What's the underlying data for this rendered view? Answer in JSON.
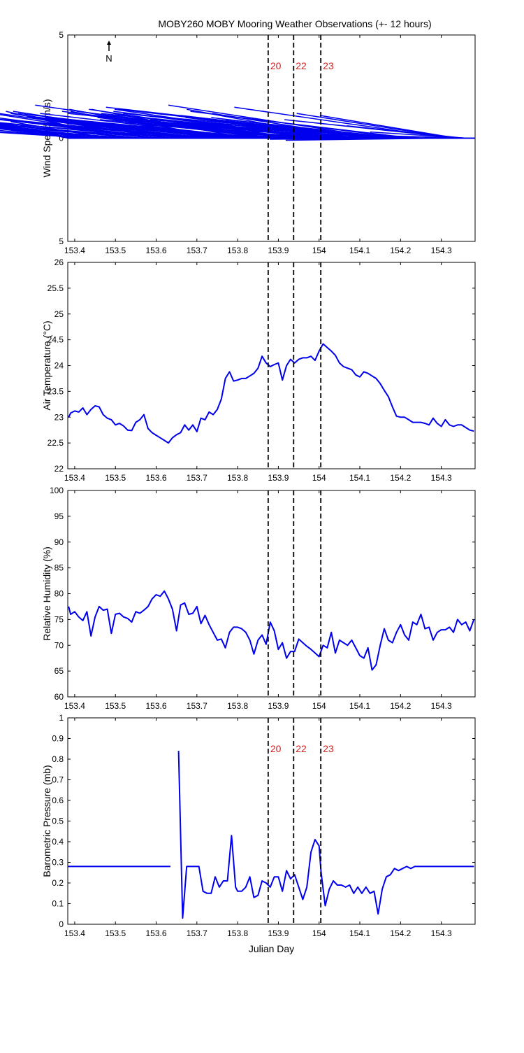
{
  "title": "MOBY260 MOBY Mooring Weather Observations (+- 12 hours)",
  "north_label": "N",
  "colors": {
    "series": "#0000ee",
    "marker_text": "#cc2222",
    "axis": "#000000"
  },
  "markers": {
    "x": [
      153.875,
      153.9375,
      154.0042
    ],
    "labels": [
      "20",
      "22",
      "23"
    ]
  },
  "chart_data": [
    {
      "type": "quiver",
      "ylabel": "Wind Speed (m/s)",
      "xlabel": "Julian Day",
      "xlim": [
        153.383,
        154.383
      ],
      "ylim": [
        -5,
        5
      ],
      "yticks": [
        "5",
        "0",
        "5"
      ],
      "xticks": [
        "153.4",
        "153.5",
        "153.6",
        "153.7",
        "153.8",
        "153.9",
        "154",
        "154.1",
        "154.2",
        "154.3"
      ],
      "show_marker_labels": true,
      "vectors": {
        "x": [
          153.384,
          153.393,
          153.402,
          153.411,
          153.42,
          153.429,
          153.438,
          153.447,
          153.456,
          153.465,
          153.474,
          153.483,
          153.492,
          153.501,
          153.51,
          153.519,
          153.528,
          153.537,
          153.546,
          153.555,
          153.564,
          153.573,
          153.582,
          153.591,
          153.6,
          153.609,
          153.618,
          153.627,
          153.636,
          153.645,
          153.654,
          153.663,
          153.672,
          153.681,
          153.69,
          153.699,
          153.708,
          153.717,
          153.726,
          153.735,
          153.744,
          153.753,
          153.762,
          153.771,
          153.78,
          153.789,
          153.798,
          153.807,
          153.816,
          153.825,
          153.834,
          153.843,
          153.852,
          153.861,
          153.87,
          153.879,
          153.888,
          153.897,
          153.906,
          153.915,
          153.924,
          153.933,
          153.942,
          153.951,
          153.96,
          153.969,
          153.978,
          153.987,
          153.996,
          154.005,
          154.014,
          154.023,
          154.032,
          154.041,
          154.05,
          154.059,
          154.068,
          154.077,
          154.086,
          154.095,
          154.104,
          154.113,
          154.122,
          154.131,
          154.14,
          154.149,
          154.158,
          154.167,
          154.176,
          154.185,
          154.194,
          154.203,
          154.212,
          154.221,
          154.23,
          154.239,
          154.248,
          154.257,
          154.266,
          154.275,
          154.284,
          154.293,
          154.302,
          154.311,
          154.32,
          154.329,
          154.338,
          154.347,
          154.356,
          154.365,
          154.374
        ],
        "u": [
          0.6,
          0.7,
          0.5,
          0.9,
          0.8,
          0.6,
          1.0,
          0.7,
          0.6,
          0.8,
          0.9,
          0.5,
          0.7,
          0.8,
          1.0,
          0.6,
          0.9,
          0.7,
          0.8,
          0.6,
          1.0,
          0.9,
          1.4,
          0.8,
          0.7,
          0.9,
          1.0,
          0.8,
          1.1,
          0.9,
          1.0,
          0.8,
          0.7,
          0.9,
          1.1,
          0.8,
          0.9,
          1.0,
          0.7,
          0.8,
          1.2,
          0.9,
          1.0,
          0.8,
          0.9,
          1.1,
          0.8,
          1.0,
          0.9,
          0.8,
          1.0,
          1.1,
          0.9,
          0.8,
          1.0,
          1.2,
          0.9,
          1.1,
          0.8,
          1.0,
          0.9,
          1.1,
          1.0,
          0.8,
          1.2,
          0.9,
          1.0,
          1.1,
          0.8,
          0.9,
          1.0,
          1.1,
          0.9,
          1.2,
          1.0,
          0.8,
          1.1,
          0.9,
          1.0,
          1.2,
          0.9,
          1.1,
          0.8,
          1.3,
          1.0,
          1.4,
          1.1,
          0.9,
          1.2,
          1.0,
          1.3,
          0.9,
          1.1,
          1.0,
          0.8,
          1.0,
          0.9,
          1.1,
          0.8,
          1.0,
          0.9,
          0.7,
          0.8,
          0.9,
          1.1,
          0.8,
          0.7,
          0.9,
          0.6,
          0.5,
          0.4
        ],
        "v": [
          1.1,
          1.2,
          0.8,
          1.0,
          0.7,
          0.9,
          0.6,
          0.8,
          0.6,
          0.7,
          0.5,
          0.8,
          0.6,
          0.7,
          0.9,
          1.3,
          0.7,
          0.5,
          0.8,
          0.6,
          0.9,
          0.7,
          2.1,
          1.0,
          0.8,
          0.7,
          0.9,
          1.2,
          1.5,
          0.9,
          0.8,
          1.1,
          0.9,
          1.3,
          0.8,
          0.7,
          1.1,
          0.9,
          1.3,
          0.8,
          1.0,
          0.7,
          1.0,
          1.4,
          0.9,
          1.2,
          0.8,
          1.0,
          0.7,
          1.4,
          0.9,
          1.2,
          0.8,
          1.1,
          0.9,
          1.6,
          1.0,
          1.3,
          0.8,
          1.4,
          1.1,
          1.3,
          0.9,
          1.0,
          1.2,
          0.8,
          1.4,
          1.0,
          0.9,
          1.1,
          0.7,
          1.3,
          0.8,
          1.2,
          1.0,
          1.4,
          0.9,
          1.1,
          0.8,
          1.2,
          1.0,
          0.9,
          1.2,
          1.4,
          1.1,
          1.5,
          1.6,
          1.0,
          1.2,
          0.8,
          1.1,
          0.9,
          1.3,
          0.7,
          0.9,
          0.6,
          0.5,
          0.4,
          0.3,
          0.2,
          0.1,
          -0.05,
          -0.1,
          -0.05,
          1.5,
          1.2,
          1.1,
          0.9,
          0.6,
          0.3,
          0.1
        ]
      }
    },
    {
      "type": "line",
      "ylabel": "Air Temperature (°C)",
      "xlabel": "Julian Day",
      "xlim": [
        153.383,
        154.383
      ],
      "ylim": [
        22,
        26
      ],
      "yticks": [
        "22",
        "22.5",
        "23",
        "23.5",
        "24",
        "24.5",
        "25",
        "25.5",
        "26"
      ],
      "xticks": [
        "153.4",
        "153.5",
        "153.6",
        "153.7",
        "153.8",
        "153.9",
        "154",
        "154.1",
        "154.2",
        "154.3"
      ],
      "show_marker_labels": false,
      "series": [
        {
          "x": [
            153.385,
            153.39,
            153.4,
            153.41,
            153.42,
            153.43,
            153.44,
            153.45,
            153.46,
            153.47,
            153.48,
            153.49,
            153.5,
            153.51,
            153.52,
            153.53,
            153.54,
            153.55,
            153.56,
            153.57,
            153.58,
            153.59,
            153.6,
            153.61,
            153.62,
            153.63,
            153.64,
            153.65,
            153.66,
            153.67,
            153.68,
            153.69,
            153.7,
            153.71,
            153.72,
            153.73,
            153.74,
            153.75,
            153.76,
            153.77,
            153.78,
            153.79,
            153.8,
            153.81,
            153.82,
            153.83,
            153.84,
            153.85,
            153.86,
            153.87,
            153.88,
            153.89,
            153.9,
            153.91,
            153.92,
            153.93,
            153.94,
            153.95,
            153.96,
            153.97,
            153.98,
            153.99,
            154.0,
            154.01,
            154.02,
            154.03,
            154.04,
            154.05,
            154.06,
            154.07,
            154.08,
            154.09,
            154.1,
            154.11,
            154.12,
            154.13,
            154.14,
            154.15,
            154.16,
            154.17,
            154.18,
            154.19,
            154.2,
            154.21,
            154.22,
            154.23,
            154.24,
            154.25,
            154.26,
            154.27,
            154.28,
            154.29,
            154.3,
            154.31,
            154.32,
            154.33,
            154.34,
            154.35,
            154.36,
            154.37,
            154.38
          ],
          "y": [
            23.0,
            23.08,
            23.12,
            23.1,
            23.18,
            23.05,
            23.15,
            23.22,
            23.2,
            23.05,
            22.98,
            22.95,
            22.85,
            22.88,
            22.83,
            22.75,
            22.74,
            22.9,
            22.95,
            23.05,
            22.78,
            22.7,
            22.65,
            22.6,
            22.55,
            22.5,
            22.6,
            22.66,
            22.7,
            22.85,
            22.75,
            22.85,
            22.72,
            22.98,
            22.95,
            23.1,
            23.05,
            23.15,
            23.35,
            23.75,
            23.88,
            23.7,
            23.72,
            23.75,
            23.75,
            23.8,
            23.85,
            23.95,
            24.18,
            24.05,
            23.98,
            24.02,
            24.05,
            23.72,
            24.0,
            24.12,
            24.05,
            24.12,
            24.15,
            24.15,
            24.18,
            24.1,
            24.28,
            24.42,
            24.35,
            24.28,
            24.2,
            24.05,
            23.98,
            23.95,
            23.92,
            23.82,
            23.78,
            23.88,
            23.85,
            23.8,
            23.75,
            23.65,
            23.52,
            23.4,
            23.2,
            23.02,
            23.0,
            23.0,
            22.95,
            22.9,
            22.9,
            22.9,
            22.88,
            22.85,
            22.98,
            22.88,
            22.82,
            22.95,
            22.85,
            22.82,
            22.85,
            22.85,
            22.8,
            22.75,
            22.73
          ]
        }
      ]
    },
    {
      "type": "line",
      "ylabel": "Relative Humidity (%)",
      "xlabel": "Julian Day",
      "xlim": [
        153.383,
        154.383
      ],
      "ylim": [
        60,
        100
      ],
      "yticks": [
        "60",
        "65",
        "70",
        "75",
        "80",
        "85",
        "90",
        "95",
        "100"
      ],
      "xticks": [
        "153.4",
        "153.5",
        "153.6",
        "153.7",
        "153.8",
        "153.9",
        "154",
        "154.1",
        "154.2",
        "154.3"
      ],
      "show_marker_labels": false,
      "series": [
        {
          "x": [
            153.385,
            153.39,
            153.4,
            153.41,
            153.42,
            153.43,
            153.44,
            153.45,
            153.46,
            153.47,
            153.48,
            153.49,
            153.5,
            153.51,
            153.52,
            153.53,
            153.54,
            153.55,
            153.56,
            153.57,
            153.58,
            153.59,
            153.6,
            153.61,
            153.62,
            153.63,
            153.64,
            153.65,
            153.66,
            153.67,
            153.68,
            153.69,
            153.7,
            153.71,
            153.72,
            153.73,
            153.74,
            153.75,
            153.76,
            153.77,
            153.78,
            153.79,
            153.8,
            153.81,
            153.82,
            153.83,
            153.84,
            153.85,
            153.86,
            153.87,
            153.88,
            153.89,
            153.9,
            153.91,
            153.92,
            153.93,
            153.94,
            153.95,
            153.96,
            153.97,
            153.98,
            153.99,
            154.0,
            154.01,
            154.02,
            154.03,
            154.04,
            154.05,
            154.06,
            154.07,
            154.08,
            154.09,
            154.1,
            154.11,
            154.12,
            154.13,
            154.14,
            154.15,
            154.16,
            154.17,
            154.18,
            154.19,
            154.2,
            154.21,
            154.22,
            154.23,
            154.24,
            154.25,
            154.26,
            154.27,
            154.28,
            154.29,
            154.3,
            154.31,
            154.32,
            154.33,
            154.34,
            154.35,
            154.36,
            154.37,
            154.38
          ],
          "y": [
            77.5,
            76,
            76.5,
            75.5,
            74.8,
            76.5,
            71.8,
            75.5,
            77.5,
            76.8,
            77,
            72.3,
            76,
            76.2,
            75.5,
            75.2,
            74.5,
            76.5,
            76.2,
            76.8,
            77.5,
            79,
            79.8,
            79.5,
            80.5,
            79,
            77,
            72.8,
            77.8,
            78.2,
            76,
            76.2,
            77.5,
            74.2,
            75.8,
            74,
            72.5,
            71,
            71.2,
            69.5,
            72.5,
            73.5,
            73.5,
            73.2,
            72.5,
            71,
            68.3,
            71,
            72,
            70.2,
            74.5,
            72.8,
            69.2,
            70.5,
            67.5,
            68.8,
            68.8,
            71.2,
            70.5,
            69.8,
            69.2,
            68.5,
            67.8,
            70,
            69.5,
            72.5,
            68.5,
            71,
            70.5,
            70,
            71,
            69.5,
            68,
            67.5,
            69.5,
            65.2,
            66.2,
            70,
            73.2,
            71,
            70.5,
            72.5,
            74,
            72,
            71,
            74.5,
            74,
            76,
            73.2,
            73.5,
            71,
            72.5,
            73,
            73,
            73.5,
            72.5,
            75,
            74,
            74.5,
            72.8,
            75
          ]
        }
      ]
    },
    {
      "type": "line",
      "ylabel": "Barometric Pressure (mb)",
      "xlabel": "Julian Day",
      "xlim": [
        153.383,
        154.383
      ],
      "ylim": [
        0,
        1
      ],
      "yticks": [
        "0",
        "0.1",
        "0.2",
        "0.3",
        "0.4",
        "0.5",
        "0.6",
        "0.7",
        "0.8",
        "0.9",
        "1"
      ],
      "xticks": [
        "153.4",
        "153.5",
        "153.6",
        "153.7",
        "153.8",
        "153.9",
        "154",
        "154.1",
        "154.2",
        "154.3"
      ],
      "show_marker_labels": true,
      "series": [
        {
          "x": [
            153.383,
            153.635
          ],
          "y": [
            0.28,
            0.28
          ]
        },
        {
          "x": [
            153.655,
            153.665,
            153.675,
            153.685,
            153.695,
            153.705,
            153.715,
            153.725,
            153.735,
            153.745,
            153.755,
            153.765,
            153.775,
            153.785,
            153.795,
            153.8,
            153.81,
            153.82,
            153.83,
            153.84,
            153.85,
            153.86,
            153.87,
            153.88,
            153.89,
            153.9,
            153.91,
            153.92,
            153.93,
            153.94,
            153.95,
            153.96,
            153.97,
            153.98,
            153.99,
            154.0,
            154.005,
            154.015,
            154.025,
            154.035,
            154.045,
            154.055,
            154.065,
            154.075,
            154.085,
            154.095,
            154.105,
            154.115,
            154.125,
            154.135,
            154.145,
            154.155,
            154.165,
            154.175,
            154.185,
            154.195,
            154.205,
            154.215,
            154.225,
            154.235,
            154.245,
            154.255,
            154.265,
            154.38
          ],
          "y": [
            0.84,
            0.03,
            0.28,
            0.28,
            0.28,
            0.28,
            0.16,
            0.15,
            0.15,
            0.23,
            0.18,
            0.21,
            0.21,
            0.43,
            0.18,
            0.16,
            0.16,
            0.18,
            0.23,
            0.13,
            0.14,
            0.21,
            0.2,
            0.18,
            0.23,
            0.23,
            0.16,
            0.26,
            0.22,
            0.24,
            0.18,
            0.12,
            0.18,
            0.35,
            0.41,
            0.38,
            0.25,
            0.09,
            0.17,
            0.21,
            0.19,
            0.19,
            0.18,
            0.19,
            0.15,
            0.18,
            0.15,
            0.18,
            0.15,
            0.16,
            0.05,
            0.17,
            0.23,
            0.24,
            0.27,
            0.26,
            0.27,
            0.28,
            0.27,
            0.28,
            0.28,
            0.28,
            0.28,
            0.28
          ]
        }
      ]
    }
  ]
}
